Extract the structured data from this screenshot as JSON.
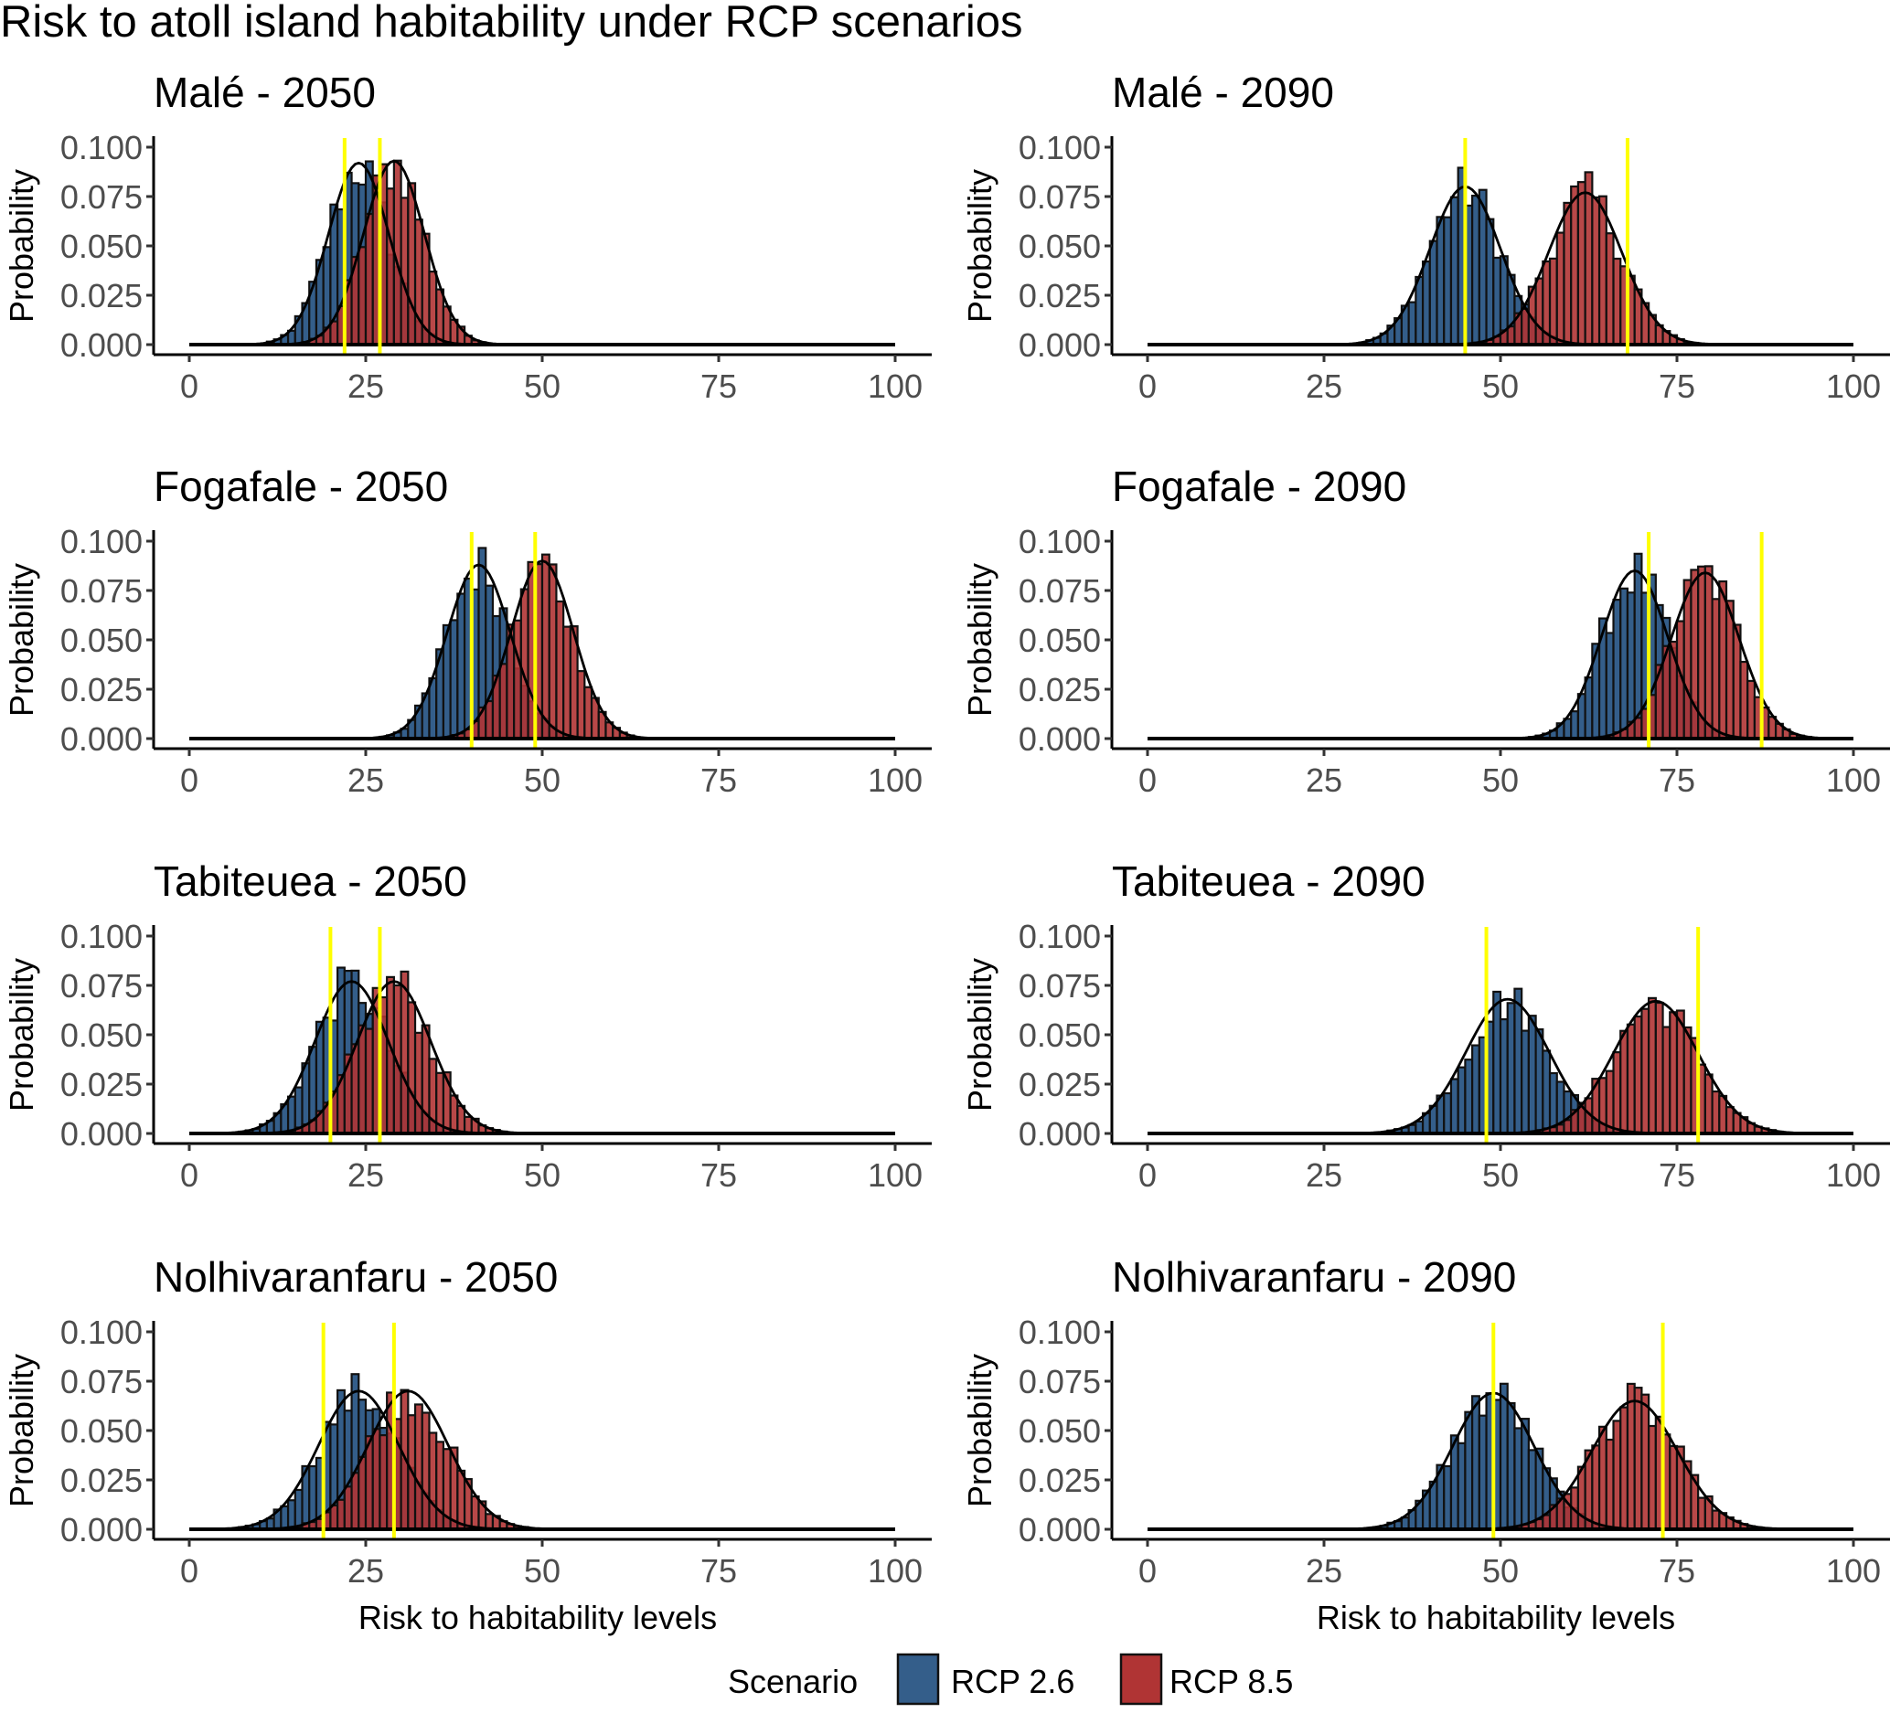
{
  "chart_data": {
    "type": "bar",
    "title": "Risk to atoll island habitability under RCP scenarios",
    "xlabel": "Risk to habitability levels",
    "ylabel": "Probability",
    "xlim": [
      0,
      100
    ],
    "ylim": [
      0,
      0.1
    ],
    "x_ticks": [
      "0",
      "25",
      "50",
      "75",
      "100"
    ],
    "y_ticks": [
      "0.000",
      "0.025",
      "0.050",
      "0.075",
      "0.100"
    ],
    "grid": false,
    "legend": {
      "title": "Scenario",
      "position": "bottom",
      "entries": [
        {
          "label": "RCP 2.6",
          "color": "#345e8a"
        },
        {
          "label": "RCP 8.5",
          "color": "#b03434"
        }
      ]
    },
    "marker_line_color": "#ffff00",
    "curve_color": "#000000",
    "panels": [
      {
        "title": "Malé  -  2050",
        "island": "Malé",
        "year": "2050",
        "series": [
          {
            "name": "RCP 2.6",
            "mean": 24,
            "sd": 4.3,
            "peak": 0.092
          },
          {
            "name": "RCP 8.5",
            "mean": 29,
            "sd": 4.3,
            "peak": 0.093
          }
        ],
        "yellow_lines": [
          22,
          27
        ]
      },
      {
        "title": "Malé  -  2090",
        "island": "Malé",
        "year": "2090",
        "series": [
          {
            "name": "RCP 2.6",
            "mean": 45,
            "sd": 5.0,
            "peak": 0.08
          },
          {
            "name": "RCP 8.5",
            "mean": 62,
            "sd": 5.2,
            "peak": 0.077
          }
        ],
        "yellow_lines": [
          45,
          68
        ]
      },
      {
        "title": "Fogafale  -  2050",
        "island": "Fogafale",
        "year": "2050",
        "series": [
          {
            "name": "RCP 2.6",
            "mean": 41,
            "sd": 4.5,
            "peak": 0.088
          },
          {
            "name": "RCP 8.5",
            "mean": 50,
            "sd": 4.4,
            "peak": 0.09
          }
        ],
        "yellow_lines": [
          40,
          49
        ]
      },
      {
        "title": "Fogafale  -  2090",
        "island": "Fogafale",
        "year": "2090",
        "series": [
          {
            "name": "RCP 2.6",
            "mean": 69,
            "sd": 4.7,
            "peak": 0.085
          },
          {
            "name": "RCP 8.5",
            "mean": 79,
            "sd": 4.8,
            "peak": 0.084
          }
        ],
        "yellow_lines": [
          71,
          87
        ]
      },
      {
        "title": "Tabiteuea  -  2050",
        "island": "Tabiteuea",
        "year": "2050",
        "series": [
          {
            "name": "RCP 2.6",
            "mean": 23,
            "sd": 5.2,
            "peak": 0.077
          },
          {
            "name": "RCP 8.5",
            "mean": 29,
            "sd": 5.2,
            "peak": 0.077
          }
        ],
        "yellow_lines": [
          20,
          27
        ]
      },
      {
        "title": "Tabiteuea  -  2090",
        "island": "Tabiteuea",
        "year": "2090",
        "series": [
          {
            "name": "RCP 2.6",
            "mean": 51,
            "sd": 5.9,
            "peak": 0.068
          },
          {
            "name": "RCP 8.5",
            "mean": 72,
            "sd": 6.0,
            "peak": 0.067
          }
        ],
        "yellow_lines": [
          48,
          78
        ]
      },
      {
        "title": "Nolhivaranfaru  -  2050",
        "island": "Nolhivaranfaru",
        "year": "2050",
        "series": [
          {
            "name": "RCP 2.6",
            "mean": 24,
            "sd": 5.7,
            "peak": 0.07
          },
          {
            "name": "RCP 8.5",
            "mean": 31,
            "sd": 5.7,
            "peak": 0.07
          }
        ],
        "yellow_lines": [
          19,
          29
        ]
      },
      {
        "title": "Nolhivaranfaru  -  2090",
        "island": "Nolhivaranfaru",
        "year": "2090",
        "series": [
          {
            "name": "RCP 2.6",
            "mean": 49,
            "sd": 5.8,
            "peak": 0.069
          },
          {
            "name": "RCP 8.5",
            "mean": 69,
            "sd": 6.1,
            "peak": 0.065
          }
        ],
        "yellow_lines": [
          49,
          73
        ]
      }
    ]
  }
}
